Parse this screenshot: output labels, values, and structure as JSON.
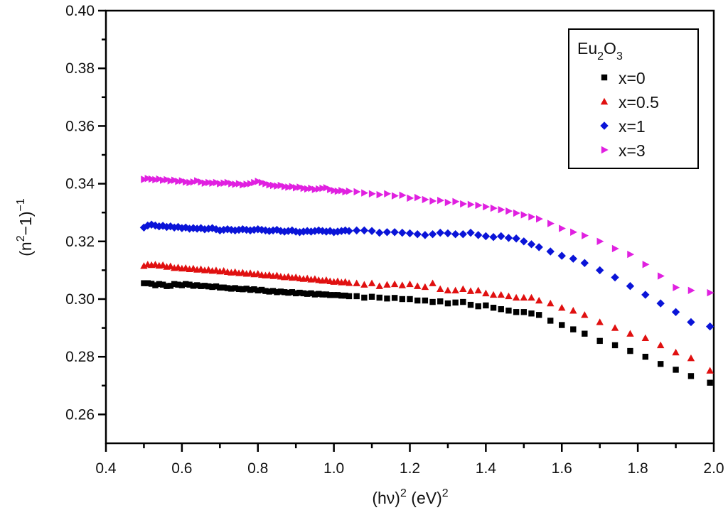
{
  "chart_data": {
    "type": "scatter",
    "title": "",
    "xlabel": "(hν)² (eV)²",
    "xlabel_parts": {
      "base1": "(hν)",
      "sup1": "2",
      "base2": " (eV)",
      "sup2": "2"
    },
    "ylabel": "(n²−1)⁻¹",
    "ylabel_parts": {
      "base1": "(n",
      "sup1": "2",
      "base2": "−1)",
      "sup2": "−1"
    },
    "xlim": [
      0.4,
      2.0
    ],
    "ylim": [
      0.25,
      0.4
    ],
    "xticks": [
      0.4,
      0.6,
      0.8,
      1.0,
      1.2,
      1.4,
      1.6,
      1.8,
      2.0
    ],
    "xtick_labels": [
      "0.4",
      "0.6",
      "0.8",
      "1.0",
      "1.2",
      "1.4",
      "1.6",
      "1.8",
      "2.0"
    ],
    "yticks": [
      0.26,
      0.28,
      0.3,
      0.32,
      0.34,
      0.36,
      0.38,
      0.4
    ],
    "ytick_labels": [
      "0.26",
      "0.28",
      "0.30",
      "0.32",
      "0.34",
      "0.36",
      "0.38",
      "0.40"
    ],
    "grid": false,
    "legend": {
      "placement": "top-right",
      "title_base": "Eu",
      "title_sub1": "2",
      "title_mid": "O",
      "title_sub2": "3",
      "title": "Eu2O3"
    },
    "series": [
      {
        "name": "x=0",
        "marker": "square",
        "color": "#000000",
        "x": [
          0.5,
          0.51,
          0.52,
          0.53,
          0.54,
          0.55,
          0.56,
          0.57,
          0.58,
          0.59,
          0.6,
          0.61,
          0.62,
          0.63,
          0.64,
          0.65,
          0.66,
          0.67,
          0.68,
          0.69,
          0.7,
          0.71,
          0.72,
          0.73,
          0.74,
          0.75,
          0.76,
          0.77,
          0.78,
          0.79,
          0.8,
          0.81,
          0.82,
          0.83,
          0.84,
          0.85,
          0.86,
          0.87,
          0.88,
          0.89,
          0.9,
          0.91,
          0.92,
          0.93,
          0.94,
          0.95,
          0.96,
          0.97,
          0.98,
          0.99,
          1.0,
          1.01,
          1.02,
          1.03,
          1.04,
          1.06,
          1.08,
          1.1,
          1.12,
          1.14,
          1.16,
          1.18,
          1.2,
          1.22,
          1.24,
          1.26,
          1.28,
          1.3,
          1.32,
          1.34,
          1.36,
          1.38,
          1.4,
          1.42,
          1.44,
          1.46,
          1.48,
          1.5,
          1.52,
          1.54,
          1.57,
          1.6,
          1.63,
          1.66,
          1.7,
          1.74,
          1.78,
          1.82,
          1.86,
          1.9,
          1.94,
          1.99
        ],
        "y": [
          0.3055,
          0.3055,
          0.3053,
          0.3048,
          0.3052,
          0.305,
          0.3045,
          0.3046,
          0.3052,
          0.305,
          0.3048,
          0.3052,
          0.305,
          0.3046,
          0.3048,
          0.3045,
          0.3046,
          0.3044,
          0.3042,
          0.3044,
          0.304,
          0.304,
          0.3038,
          0.3036,
          0.3038,
          0.3035,
          0.3034,
          0.3036,
          0.3032,
          0.3034,
          0.303,
          0.3032,
          0.3028,
          0.3026,
          0.3028,
          0.3024,
          0.3026,
          0.3024,
          0.3022,
          0.3024,
          0.302,
          0.3022,
          0.302,
          0.3018,
          0.302,
          0.3016,
          0.3018,
          0.3016,
          0.3016,
          0.3014,
          0.3014,
          0.3014,
          0.3012,
          0.3012,
          0.301,
          0.301,
          0.3005,
          0.3008,
          0.3005,
          0.3002,
          0.3004,
          0.3,
          0.3,
          0.2995,
          0.2995,
          0.299,
          0.2992,
          0.2985,
          0.2988,
          0.299,
          0.298,
          0.2975,
          0.2978,
          0.297,
          0.2965,
          0.296,
          0.2955,
          0.2955,
          0.295,
          0.2945,
          0.2925,
          0.291,
          0.2895,
          0.288,
          0.2855,
          0.284,
          0.282,
          0.28,
          0.2775,
          0.2755,
          0.2733,
          0.271
        ]
      },
      {
        "name": "x=0.5",
        "marker": "triangle-up",
        "color": "#e01010",
        "x": [
          0.5,
          0.51,
          0.52,
          0.53,
          0.54,
          0.55,
          0.56,
          0.57,
          0.58,
          0.59,
          0.6,
          0.61,
          0.62,
          0.63,
          0.64,
          0.65,
          0.66,
          0.67,
          0.68,
          0.69,
          0.7,
          0.71,
          0.72,
          0.73,
          0.74,
          0.75,
          0.76,
          0.77,
          0.78,
          0.79,
          0.8,
          0.81,
          0.82,
          0.83,
          0.84,
          0.85,
          0.86,
          0.87,
          0.88,
          0.89,
          0.9,
          0.91,
          0.92,
          0.93,
          0.94,
          0.95,
          0.96,
          0.97,
          0.98,
          0.99,
          1.0,
          1.01,
          1.02,
          1.03,
          1.04,
          1.06,
          1.08,
          1.1,
          1.12,
          1.14,
          1.16,
          1.18,
          1.2,
          1.22,
          1.24,
          1.26,
          1.28,
          1.3,
          1.32,
          1.34,
          1.36,
          1.38,
          1.4,
          1.42,
          1.44,
          1.46,
          1.48,
          1.5,
          1.52,
          1.54,
          1.57,
          1.6,
          1.63,
          1.66,
          1.7,
          1.74,
          1.78,
          1.82,
          1.86,
          1.9,
          1.94,
          1.99
        ],
        "y": [
          0.3115,
          0.312,
          0.3118,
          0.312,
          0.3116,
          0.3118,
          0.3112,
          0.3114,
          0.3108,
          0.311,
          0.3106,
          0.3108,
          0.3104,
          0.3106,
          0.3102,
          0.3104,
          0.31,
          0.3102,
          0.3098,
          0.31,
          0.3096,
          0.3098,
          0.3094,
          0.3092,
          0.3094,
          0.309,
          0.3092,
          0.3088,
          0.309,
          0.3086,
          0.3088,
          0.3084,
          0.3082,
          0.3084,
          0.308,
          0.3082,
          0.3078,
          0.3076,
          0.3078,
          0.3074,
          0.3076,
          0.3072,
          0.307,
          0.3072,
          0.3068,
          0.307,
          0.3066,
          0.3064,
          0.3066,
          0.3062,
          0.306,
          0.3062,
          0.3058,
          0.306,
          0.3056,
          0.3055,
          0.305,
          0.3055,
          0.3045,
          0.305,
          0.3052,
          0.3048,
          0.3052,
          0.3045,
          0.3042,
          0.3055,
          0.3035,
          0.303,
          0.303,
          0.3035,
          0.3028,
          0.303,
          0.302,
          0.3015,
          0.3015,
          0.301,
          0.3005,
          0.3005,
          0.3005,
          0.2995,
          0.2985,
          0.297,
          0.296,
          0.2945,
          0.292,
          0.29,
          0.288,
          0.2865,
          0.284,
          0.2815,
          0.2795,
          0.2752
        ]
      },
      {
        "name": "x=1",
        "marker": "diamond",
        "color": "#0a14d8",
        "x": [
          0.5,
          0.51,
          0.52,
          0.53,
          0.54,
          0.55,
          0.56,
          0.57,
          0.58,
          0.59,
          0.6,
          0.61,
          0.62,
          0.63,
          0.64,
          0.65,
          0.66,
          0.67,
          0.68,
          0.69,
          0.7,
          0.71,
          0.72,
          0.73,
          0.74,
          0.75,
          0.76,
          0.77,
          0.78,
          0.79,
          0.8,
          0.81,
          0.82,
          0.83,
          0.84,
          0.85,
          0.86,
          0.87,
          0.88,
          0.89,
          0.9,
          0.91,
          0.92,
          0.93,
          0.94,
          0.95,
          0.96,
          0.97,
          0.98,
          0.99,
          1.0,
          1.01,
          1.02,
          1.03,
          1.04,
          1.06,
          1.08,
          1.1,
          1.12,
          1.14,
          1.16,
          1.18,
          1.2,
          1.22,
          1.24,
          1.26,
          1.28,
          1.3,
          1.32,
          1.34,
          1.36,
          1.38,
          1.4,
          1.42,
          1.44,
          1.46,
          1.48,
          1.5,
          1.52,
          1.54,
          1.57,
          1.6,
          1.63,
          1.66,
          1.7,
          1.74,
          1.78,
          1.82,
          1.86,
          1.9,
          1.94,
          1.99
        ],
        "y": [
          0.3248,
          0.3255,
          0.3258,
          0.3255,
          0.3252,
          0.3254,
          0.325,
          0.3252,
          0.3248,
          0.325,
          0.3246,
          0.3248,
          0.3244,
          0.3246,
          0.3244,
          0.3246,
          0.3242,
          0.3244,
          0.3246,
          0.3242,
          0.3238,
          0.324,
          0.3242,
          0.324,
          0.3238,
          0.324,
          0.3242,
          0.324,
          0.3238,
          0.324,
          0.3242,
          0.324,
          0.3238,
          0.3236,
          0.3238,
          0.324,
          0.3236,
          0.3234,
          0.3236,
          0.3238,
          0.3234,
          0.3232,
          0.3234,
          0.3236,
          0.3234,
          0.3236,
          0.3238,
          0.3236,
          0.3234,
          0.3236,
          0.3232,
          0.3234,
          0.3236,
          0.3238,
          0.3236,
          0.3238,
          0.3238,
          0.3236,
          0.323,
          0.3232,
          0.3232,
          0.323,
          0.3228,
          0.3225,
          0.3222,
          0.3225,
          0.323,
          0.3228,
          0.3225,
          0.3225,
          0.323,
          0.3222,
          0.3218,
          0.3215,
          0.3218,
          0.3212,
          0.321,
          0.32,
          0.319,
          0.318,
          0.3165,
          0.315,
          0.314,
          0.3125,
          0.31,
          0.3075,
          0.3045,
          0.3015,
          0.2985,
          0.2955,
          0.292,
          0.2905
        ]
      },
      {
        "name": "x=3",
        "marker": "triangle-right",
        "color": "#e020e0",
        "x": [
          0.5,
          0.51,
          0.52,
          0.53,
          0.54,
          0.55,
          0.56,
          0.57,
          0.58,
          0.59,
          0.6,
          0.61,
          0.62,
          0.63,
          0.64,
          0.65,
          0.66,
          0.67,
          0.68,
          0.69,
          0.7,
          0.71,
          0.72,
          0.73,
          0.74,
          0.75,
          0.76,
          0.77,
          0.78,
          0.79,
          0.8,
          0.81,
          0.82,
          0.83,
          0.84,
          0.85,
          0.86,
          0.87,
          0.88,
          0.89,
          0.9,
          0.91,
          0.92,
          0.93,
          0.94,
          0.95,
          0.96,
          0.97,
          0.98,
          0.99,
          1.0,
          1.01,
          1.02,
          1.03,
          1.04,
          1.06,
          1.08,
          1.1,
          1.12,
          1.14,
          1.16,
          1.18,
          1.2,
          1.22,
          1.24,
          1.26,
          1.28,
          1.3,
          1.32,
          1.34,
          1.36,
          1.38,
          1.4,
          1.42,
          1.44,
          1.46,
          1.48,
          1.5,
          1.52,
          1.54,
          1.57,
          1.6,
          1.63,
          1.66,
          1.7,
          1.74,
          1.78,
          1.82,
          1.86,
          1.9,
          1.94,
          1.99
        ],
        "y": [
          0.3415,
          0.3418,
          0.3416,
          0.3414,
          0.3416,
          0.3412,
          0.3414,
          0.341,
          0.3412,
          0.3408,
          0.341,
          0.3406,
          0.3404,
          0.3406,
          0.341,
          0.3406,
          0.3402,
          0.3404,
          0.3402,
          0.3404,
          0.34,
          0.3402,
          0.3404,
          0.34,
          0.3398,
          0.34,
          0.3396,
          0.3398,
          0.34,
          0.3404,
          0.3408,
          0.3404,
          0.34,
          0.3396,
          0.3394,
          0.3392,
          0.3394,
          0.339,
          0.3388,
          0.339,
          0.3386,
          0.3388,
          0.3384,
          0.3382,
          0.3384,
          0.338,
          0.3382,
          0.3384,
          0.3386,
          0.338,
          0.3376,
          0.3374,
          0.3376,
          0.3372,
          0.3374,
          0.3372,
          0.3368,
          0.3365,
          0.3362,
          0.3365,
          0.3358,
          0.336,
          0.335,
          0.3352,
          0.3345,
          0.334,
          0.3342,
          0.3335,
          0.3338,
          0.333,
          0.3328,
          0.3325,
          0.332,
          0.3315,
          0.331,
          0.3305,
          0.3298,
          0.3292,
          0.3285,
          0.3278,
          0.3262,
          0.3245,
          0.3232,
          0.322,
          0.32,
          0.3175,
          0.3155,
          0.312,
          0.308,
          0.304,
          0.303,
          0.3022
        ]
      }
    ]
  }
}
